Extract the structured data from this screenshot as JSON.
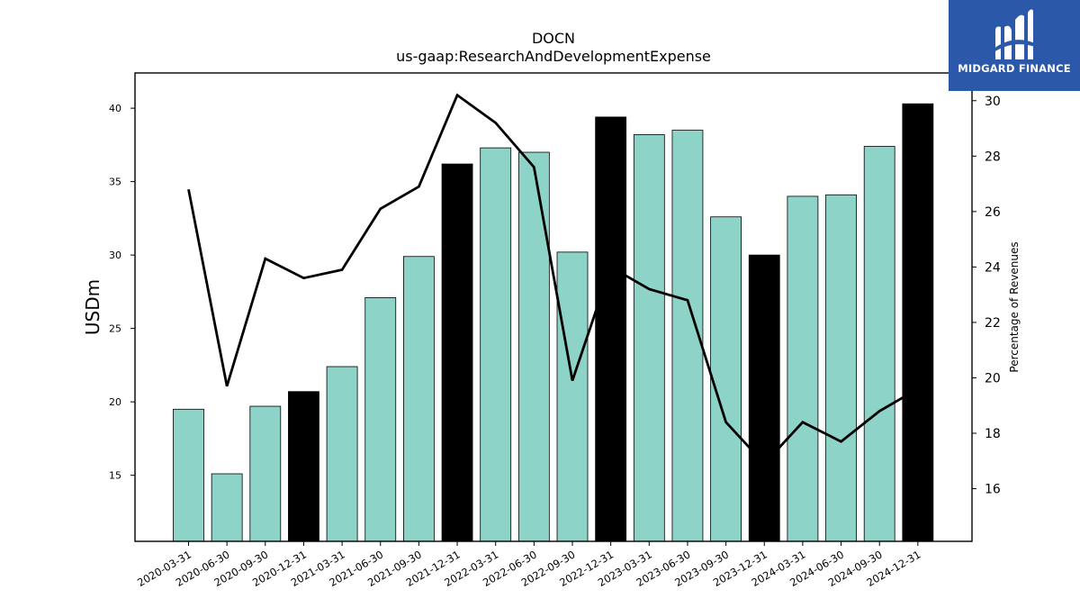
{
  "chart_data": {
    "type": "bar",
    "title": "DOCN",
    "subtitle": "us-gaap:ResearchAndDevelopmentExpense",
    "ylabel": "USDm",
    "y2label": "Percentage of Revenues",
    "ylim": [
      10.5,
      42.4
    ],
    "y2lim": [
      14.1,
      31.0
    ],
    "yticks": [
      15,
      20,
      25,
      30,
      35,
      40
    ],
    "y2ticks": [
      16,
      18,
      20,
      22,
      24,
      26,
      28,
      30
    ],
    "categories": [
      "2020-03-31",
      "2020-06-30",
      "2020-09-30",
      "2020-12-31",
      "2021-03-31",
      "2021-06-30",
      "2021-09-30",
      "2021-12-31",
      "2022-03-31",
      "2022-06-30",
      "2022-09-30",
      "2022-12-31",
      "2023-03-31",
      "2023-06-30",
      "2023-09-30",
      "2023-12-31",
      "2024-03-31",
      "2024-06-30",
      "2024-09-30",
      "2024-12-31"
    ],
    "series": [
      {
        "type": "bar",
        "values": [
          19.5,
          15.1,
          19.7,
          20.7,
          22.4,
          27.1,
          29.9,
          36.2,
          37.3,
          37.0,
          30.2,
          39.4,
          38.2,
          38.5,
          32.6,
          30.0,
          34.0,
          34.1,
          37.4,
          40.3
        ],
        "colors": [
          "#8dd3c7",
          "#8dd3c7",
          "#8dd3c7",
          "#000000",
          "#8dd3c7",
          "#8dd3c7",
          "#8dd3c7",
          "#000000",
          "#8dd3c7",
          "#8dd3c7",
          "#8dd3c7",
          "#000000",
          "#8dd3c7",
          "#8dd3c7",
          "#8dd3c7",
          "#000000",
          "#8dd3c7",
          "#8dd3c7",
          "#8dd3c7",
          "#000000"
        ]
      },
      {
        "type": "line",
        "axis": "right",
        "color": "#000000",
        "values": [
          26.8,
          19.7,
          24.3,
          23.6,
          23.9,
          26.1,
          26.9,
          30.2,
          29.2,
          27.6,
          19.9,
          24.0,
          23.2,
          22.8,
          18.4,
          16.9,
          18.4,
          17.7,
          18.8,
          19.6
        ]
      }
    ],
    "grid": false,
    "legend": "none"
  },
  "logo": {
    "text": "MIDGARD FINANCE",
    "background": "#2b58a8"
  }
}
